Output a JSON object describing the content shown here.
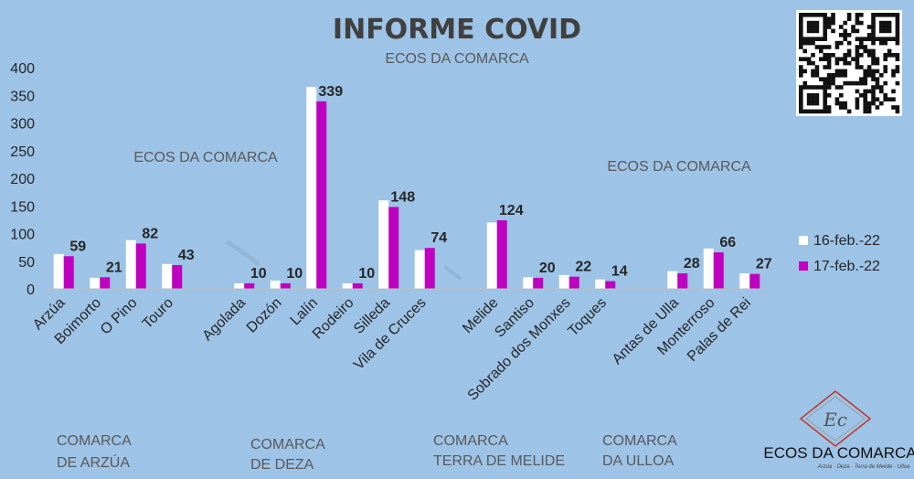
{
  "title": "INFORME COVID",
  "subtitle": "ECOS DA COMARCA",
  "watermarks": [
    "ECOS DA COMARCA",
    "ECOS DA COMARCA"
  ],
  "logo": {
    "name": "ECOS DA COMARCA",
    "tagline": "Arzúa · Deza · Terra de Melide · Ulloa",
    "initials": "Ec"
  },
  "colors": {
    "background": "#9dc3e6",
    "series1": "#ffffff",
    "series2": "#c000c0",
    "title": "#404040",
    "axis": "#262626"
  },
  "comarcas": [
    {
      "line1": "COMARCA",
      "line2": "DE ARZÚA"
    },
    {
      "line1": "COMARCA",
      "line2": "DE DEZA"
    },
    {
      "line1": "COMARCA",
      "line2": "TERRA DE MELIDE"
    },
    {
      "line1": "COMARCA",
      "line2": "DA ULLOA"
    }
  ],
  "chart_data": {
    "type": "bar",
    "title": "INFORME COVID",
    "subtitle": "ECOS DA COMARCA",
    "xlabel": "",
    "ylabel": "",
    "ylim": [
      0,
      400
    ],
    "yticks": [
      0,
      50,
      100,
      150,
      200,
      250,
      300,
      350,
      400
    ],
    "grid": false,
    "legend_position": "right",
    "categories": [
      "Arzúa",
      "Boimorto",
      "O Pino",
      "Touro",
      "",
      "Agolada",
      "Dozón",
      "Lalín",
      "Rodeiro",
      "Silleda",
      "Vila de Cruces",
      "",
      "Melide",
      "Santiso",
      "Sobrado dos Monxes",
      "Toques",
      "",
      "Antas de Ulla",
      "Monterroso",
      "Palas de Rei"
    ],
    "series": [
      {
        "name": "16-feb.-22",
        "values": [
          63,
          20,
          88,
          45,
          null,
          10,
          15,
          365,
          10,
          160,
          70,
          null,
          120,
          21,
          25,
          17,
          null,
          32,
          73,
          28
        ]
      },
      {
        "name": "17-feb.-22",
        "values": [
          59,
          21,
          82,
          43,
          null,
          10,
          10,
          339,
          10,
          148,
          74,
          null,
          124,
          20,
          22,
          14,
          null,
          28,
          66,
          27
        ]
      }
    ],
    "data_labels_series": "17-feb.-22"
  }
}
